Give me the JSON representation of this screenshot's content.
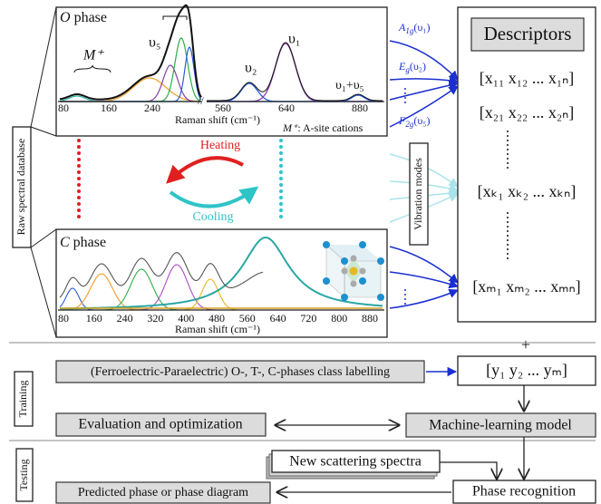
{
  "spectra": {
    "o_phase": {
      "symbol": "O",
      "label": " phase",
      "brace_label": "M⁺",
      "peak_labels": [
        "υ₅",
        "υ₂",
        "υ₁",
        "υ₁+υ₅"
      ],
      "ticks": [
        "80",
        "160",
        "240",
        "560",
        "640",
        "880"
      ],
      "axis_title": "Raman shift (cm⁻¹)",
      "note_symbol": "M⁺",
      "note": ": A-site cations"
    },
    "c_phase": {
      "symbol": "C",
      "label": " phase",
      "ticks": [
        "80",
        "160",
        "240",
        "320",
        "400",
        "480",
        "560",
        "640",
        "720",
        "800",
        "880"
      ],
      "axis_title": "Raman shift (cm⁻¹)"
    },
    "transitions": {
      "heating": "Heating",
      "cooling": "Cooling"
    }
  },
  "raw_database": "Raw spectral database",
  "vibration": {
    "modes": [
      {
        "base": "A",
        "sub": "1g",
        "arg": "(υ₁)"
      },
      {
        "base": "E",
        "sub": "g",
        "arg": "(υ₂)"
      },
      {
        "base": "F",
        "sub": "2g",
        "arg": "(υ₅)"
      }
    ],
    "title": "Vibration modes"
  },
  "descriptors": {
    "title": "Descriptors",
    "rows": [
      "[x₁₁ x₁₂ ... x₁ₙ]",
      "[x₂₁ x₂₂ ... x₂ₙ]",
      "[xₖ₁ xₖ₂ ... xₖₙ]",
      "[xₘ₁ xₘ₂ ... xₘₙ]"
    ]
  },
  "plus": "+",
  "training": {
    "label": "Training",
    "labelling": "(Ferroelectric-Paraelectric) O-, T-, C-phases class labelling",
    "targets": "[y₁ y₂ ... yₘ]",
    "evaluation": "Evaluation and optimization",
    "model": "Machine-learning model"
  },
  "testing": {
    "label": "Testing",
    "new_spectra": "New scattering spectra",
    "recognition": "Phase recognition",
    "prediction": "Predicted phase or phase diagram"
  }
}
